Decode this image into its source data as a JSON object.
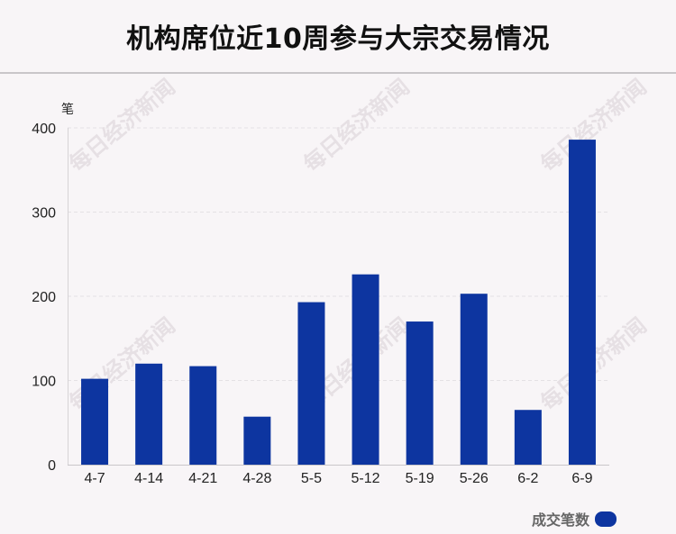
{
  "title": "机构席位近10周参与大宗交易情况",
  "watermark": "每日经济新闻",
  "chart_data": {
    "type": "bar",
    "unit": "笔",
    "categories": [
      "4-7",
      "4-14",
      "4-21",
      "4-28",
      "5-5",
      "5-12",
      "5-19",
      "5-26",
      "6-2",
      "6-9"
    ],
    "series": [
      {
        "name": "成交笔数",
        "values": [
          102,
          120,
          117,
          57,
          193,
          226,
          170,
          203,
          65,
          386
        ],
        "color": "#0d35a0"
      }
    ],
    "ylim": [
      0,
      400
    ],
    "yticks": [
      0,
      100,
      200,
      300,
      400
    ],
    "grid": true,
    "legend_position": "bottom-right"
  }
}
